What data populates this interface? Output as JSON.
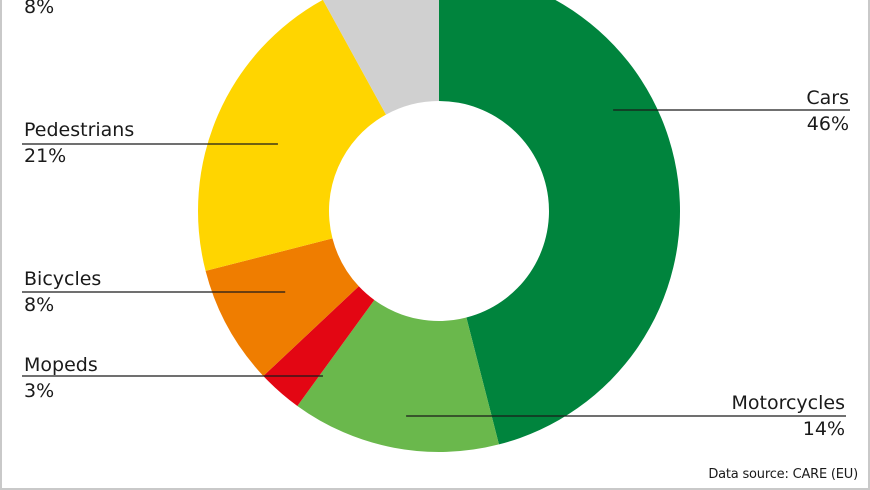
{
  "chart_data": {
    "type": "pie",
    "donut": true,
    "title": "",
    "slices": [
      {
        "label": "Cars",
        "value": 46,
        "display": "46%",
        "color": "#00843d"
      },
      {
        "label": "Motorcycles",
        "value": 14,
        "display": "14%",
        "color": "#6ab84c"
      },
      {
        "label": "Mopeds",
        "value": 3,
        "display": "3%",
        "color": "#e30613"
      },
      {
        "label": "Bicycles",
        "value": 8,
        "display": "8%",
        "color": "#ef7d00"
      },
      {
        "label": "Pedestrians",
        "value": 21,
        "display": "21%",
        "color": "#ffd500"
      },
      {
        "label": "",
        "value": 8,
        "display": "8%",
        "color": "#d0d0d0"
      }
    ]
  },
  "source": "Data source: CARE (EU)"
}
